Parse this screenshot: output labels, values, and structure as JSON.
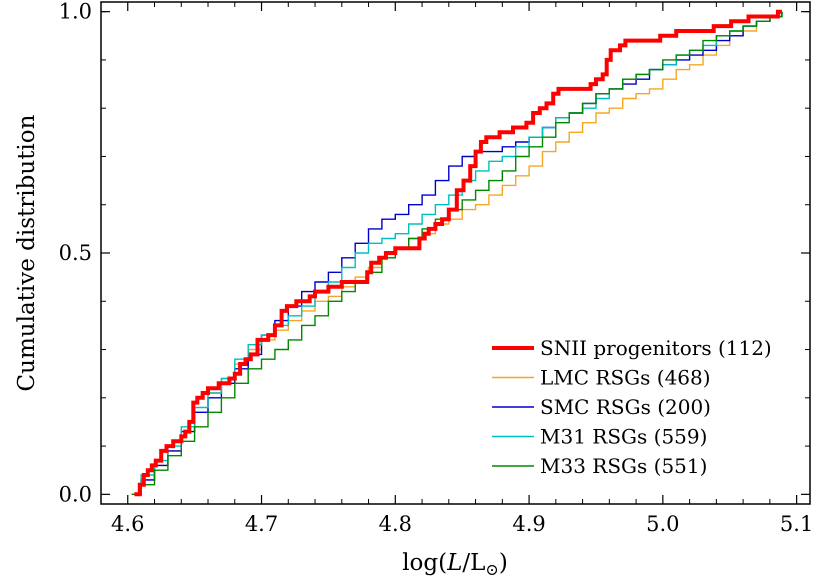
{
  "chart_data": {
    "type": "line",
    "step": true,
    "title": "",
    "xlabel": "log(L/L⊙)",
    "ylabel": "Cumulative distribution",
    "xlim": [
      4.58,
      5.11
    ],
    "ylim": [
      -0.02,
      1.02
    ],
    "xticks": [
      4.6,
      4.7,
      4.8,
      4.9,
      5.0,
      5.1
    ],
    "xtick_labels": [
      "4.6",
      "4.7",
      "4.8",
      "4.9",
      "5.0",
      "5.1"
    ],
    "yticks": [
      0.0,
      0.5,
      1.0
    ],
    "ytick_labels": [
      "0.0",
      "0.5",
      "1.0"
    ],
    "grid": false,
    "legend_position": "lower-right",
    "series": [
      {
        "name": "SNII progenitors (112)",
        "color": "#ff0000",
        "width": "thick",
        "x": [
          4.605,
          4.609,
          4.612,
          4.615,
          4.618,
          4.621,
          4.625,
          4.629,
          4.634,
          4.64,
          4.643,
          4.646,
          4.649,
          4.652,
          4.656,
          4.66,
          4.665,
          4.668,
          4.672,
          4.676,
          4.68,
          4.684,
          4.688,
          4.692,
          4.697,
          4.701,
          4.705,
          4.71,
          4.715,
          4.719,
          4.722,
          4.726,
          4.731,
          4.736,
          4.74,
          4.745,
          4.75,
          4.755,
          4.76,
          4.765,
          4.771,
          4.776,
          4.779,
          4.782,
          4.788,
          4.793,
          4.796,
          4.8,
          4.806,
          4.812,
          4.818,
          4.822,
          4.825,
          4.83,
          4.835,
          4.84,
          4.846,
          4.851,
          4.856,
          4.86,
          4.864,
          4.868,
          4.872,
          4.878,
          4.884,
          4.888,
          4.893,
          4.898,
          4.903,
          4.908,
          4.913,
          4.918,
          4.922,
          4.927,
          4.933,
          4.94,
          4.946,
          4.95,
          4.955,
          4.958,
          4.961,
          4.964,
          4.968,
          4.972,
          4.978,
          4.984,
          4.99,
          4.998,
          5.004,
          5.01,
          5.016,
          5.022,
          5.03,
          5.038,
          5.044,
          5.051,
          5.058,
          5.064,
          5.07,
          5.078,
          5.086,
          5.089
        ],
        "y": [
          0.0,
          0.02,
          0.04,
          0.05,
          0.06,
          0.07,
          0.09,
          0.1,
          0.11,
          0.12,
          0.13,
          0.15,
          0.19,
          0.2,
          0.21,
          0.22,
          0.22,
          0.23,
          0.23,
          0.24,
          0.25,
          0.27,
          0.28,
          0.29,
          0.32,
          0.32,
          0.33,
          0.35,
          0.38,
          0.39,
          0.39,
          0.4,
          0.4,
          0.41,
          0.42,
          0.42,
          0.43,
          0.43,
          0.44,
          0.44,
          0.44,
          0.44,
          0.46,
          0.48,
          0.49,
          0.5,
          0.5,
          0.51,
          0.51,
          0.51,
          0.53,
          0.54,
          0.55,
          0.56,
          0.57,
          0.59,
          0.63,
          0.65,
          0.68,
          0.71,
          0.73,
          0.74,
          0.74,
          0.75,
          0.75,
          0.76,
          0.76,
          0.77,
          0.79,
          0.8,
          0.81,
          0.83,
          0.84,
          0.84,
          0.84,
          0.84,
          0.85,
          0.86,
          0.87,
          0.9,
          0.92,
          0.92,
          0.93,
          0.94,
          0.94,
          0.94,
          0.94,
          0.95,
          0.95,
          0.96,
          0.96,
          0.96,
          0.96,
          0.97,
          0.97,
          0.98,
          0.98,
          0.99,
          0.99,
          0.99,
          1.0,
          1.0
        ]
      },
      {
        "name": "LMC RSGs (468)",
        "color": "#f5a623",
        "width": "thin",
        "x": [
          4.603,
          4.61,
          4.62,
          4.63,
          4.64,
          4.65,
          4.66,
          4.67,
          4.68,
          4.69,
          4.7,
          4.71,
          4.72,
          4.73,
          4.74,
          4.75,
          4.76,
          4.77,
          4.78,
          4.79,
          4.8,
          4.81,
          4.82,
          4.83,
          4.84,
          4.85,
          4.86,
          4.87,
          4.88,
          4.89,
          4.9,
          4.91,
          4.92,
          4.93,
          4.94,
          4.95,
          4.96,
          4.97,
          4.98,
          4.99,
          5.0,
          5.01,
          5.02,
          5.03,
          5.04,
          5.05,
          5.06,
          5.07,
          5.08,
          5.089
        ],
        "y": [
          0.0,
          0.03,
          0.06,
          0.09,
          0.13,
          0.17,
          0.21,
          0.24,
          0.27,
          0.3,
          0.32,
          0.34,
          0.36,
          0.38,
          0.4,
          0.41,
          0.43,
          0.45,
          0.47,
          0.49,
          0.51,
          0.53,
          0.54,
          0.56,
          0.57,
          0.59,
          0.6,
          0.62,
          0.64,
          0.66,
          0.68,
          0.71,
          0.73,
          0.75,
          0.77,
          0.79,
          0.8,
          0.82,
          0.83,
          0.84,
          0.86,
          0.88,
          0.89,
          0.91,
          0.93,
          0.95,
          0.96,
          0.98,
          0.99,
          1.0
        ]
      },
      {
        "name": "SMC RSGs (200)",
        "color": "#0000cc",
        "width": "thin",
        "x": [
          4.603,
          4.61,
          4.62,
          4.63,
          4.64,
          4.65,
          4.66,
          4.67,
          4.68,
          4.69,
          4.7,
          4.71,
          4.72,
          4.73,
          4.74,
          4.75,
          4.76,
          4.77,
          4.78,
          4.79,
          4.8,
          4.81,
          4.82,
          4.83,
          4.84,
          4.85,
          4.86,
          4.87,
          4.88,
          4.89,
          4.9,
          4.91,
          4.92,
          4.93,
          4.94,
          4.95,
          4.96,
          4.97,
          4.98,
          4.99,
          5.0,
          5.01,
          5.02,
          5.03,
          5.04,
          5.05,
          5.06,
          5.07,
          5.08,
          5.089
        ],
        "y": [
          0.0,
          0.03,
          0.06,
          0.09,
          0.13,
          0.17,
          0.2,
          0.23,
          0.26,
          0.29,
          0.33,
          0.36,
          0.39,
          0.42,
          0.44,
          0.46,
          0.49,
          0.52,
          0.55,
          0.57,
          0.58,
          0.6,
          0.62,
          0.65,
          0.68,
          0.7,
          0.71,
          0.71,
          0.72,
          0.73,
          0.74,
          0.76,
          0.78,
          0.79,
          0.81,
          0.83,
          0.84,
          0.85,
          0.86,
          0.88,
          0.89,
          0.9,
          0.91,
          0.92,
          0.94,
          0.95,
          0.97,
          0.98,
          0.99,
          1.0
        ]
      },
      {
        "name": "M31 RSGs (559)",
        "color": "#00bfbf",
        "width": "thin",
        "x": [
          4.603,
          4.61,
          4.62,
          4.63,
          4.64,
          4.65,
          4.66,
          4.67,
          4.68,
          4.69,
          4.7,
          4.71,
          4.72,
          4.73,
          4.74,
          4.75,
          4.76,
          4.77,
          4.78,
          4.79,
          4.8,
          4.81,
          4.82,
          4.83,
          4.84,
          4.85,
          4.86,
          4.87,
          4.88,
          4.89,
          4.9,
          4.91,
          4.92,
          4.93,
          4.94,
          4.95,
          4.96,
          4.97,
          4.98,
          4.99,
          5.0,
          5.01,
          5.02,
          5.03,
          5.04,
          5.05,
          5.06,
          5.07,
          5.08,
          5.089
        ],
        "y": [
          0.0,
          0.04,
          0.07,
          0.1,
          0.14,
          0.18,
          0.21,
          0.24,
          0.28,
          0.31,
          0.33,
          0.35,
          0.37,
          0.39,
          0.42,
          0.44,
          0.47,
          0.5,
          0.52,
          0.53,
          0.54,
          0.56,
          0.58,
          0.6,
          0.62,
          0.65,
          0.67,
          0.69,
          0.7,
          0.72,
          0.74,
          0.76,
          0.78,
          0.79,
          0.8,
          0.82,
          0.84,
          0.86,
          0.87,
          0.88,
          0.89,
          0.91,
          0.92,
          0.93,
          0.95,
          0.96,
          0.97,
          0.98,
          0.99,
          1.0
        ]
      },
      {
        "name": "M33 RSGs (551)",
        "color": "#008800",
        "width": "thin",
        "x": [
          4.603,
          4.61,
          4.62,
          4.63,
          4.64,
          4.65,
          4.66,
          4.67,
          4.68,
          4.69,
          4.7,
          4.71,
          4.72,
          4.73,
          4.74,
          4.75,
          4.76,
          4.77,
          4.78,
          4.79,
          4.8,
          4.81,
          4.82,
          4.83,
          4.84,
          4.85,
          4.86,
          4.87,
          4.88,
          4.89,
          4.9,
          4.91,
          4.92,
          4.93,
          4.94,
          4.95,
          4.96,
          4.97,
          4.98,
          4.99,
          5.0,
          5.01,
          5.02,
          5.03,
          5.04,
          5.05,
          5.06,
          5.07,
          5.08,
          5.089
        ],
        "y": [
          0.0,
          0.02,
          0.05,
          0.08,
          0.11,
          0.14,
          0.17,
          0.2,
          0.23,
          0.26,
          0.28,
          0.3,
          0.32,
          0.35,
          0.37,
          0.4,
          0.42,
          0.44,
          0.46,
          0.49,
          0.51,
          0.53,
          0.55,
          0.57,
          0.59,
          0.61,
          0.63,
          0.65,
          0.67,
          0.7,
          0.72,
          0.74,
          0.77,
          0.79,
          0.81,
          0.83,
          0.84,
          0.86,
          0.87,
          0.88,
          0.9,
          0.91,
          0.92,
          0.94,
          0.95,
          0.96,
          0.97,
          0.98,
          0.99,
          1.0
        ]
      }
    ]
  }
}
